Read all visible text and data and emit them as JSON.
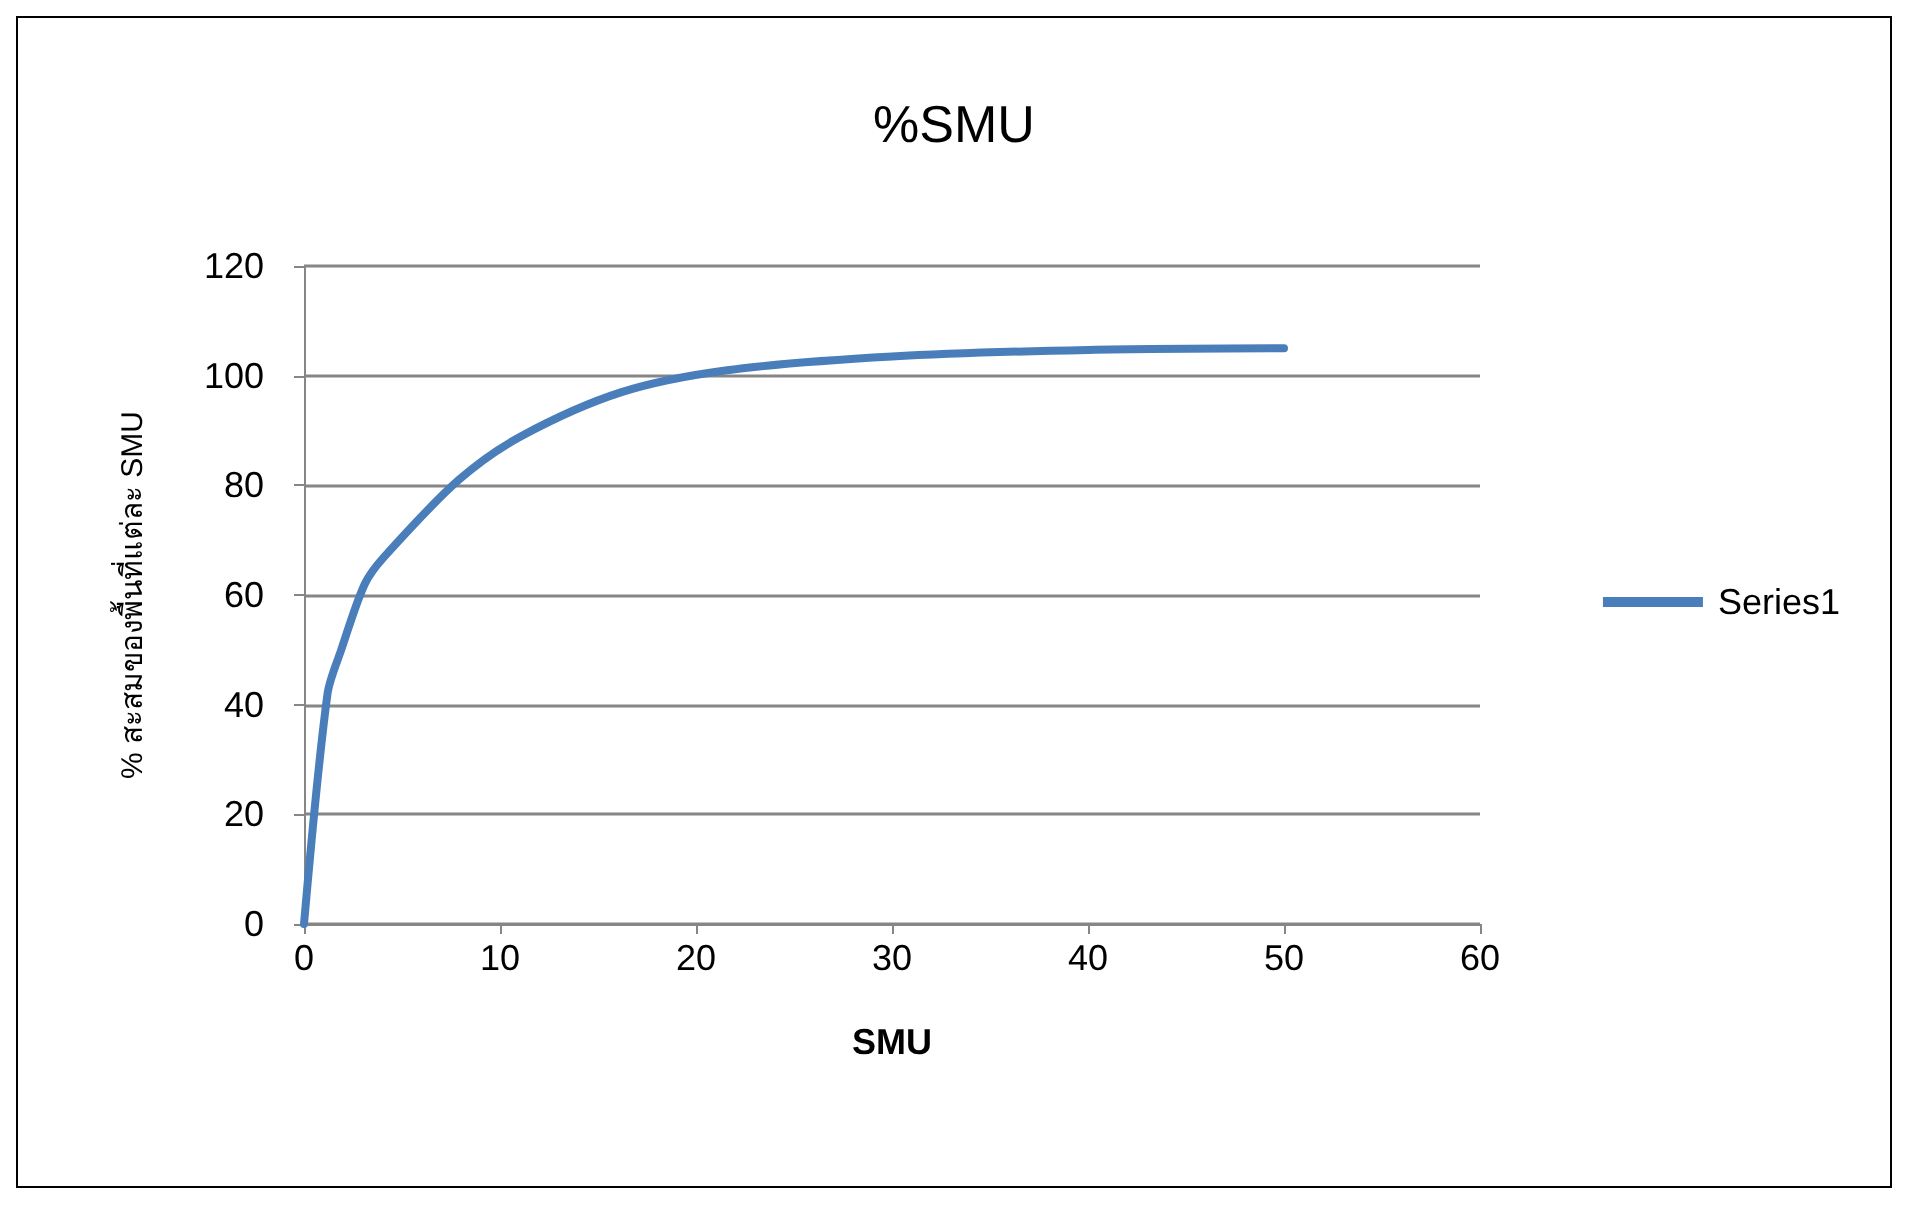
{
  "chart_data": {
    "type": "line",
    "title": "%SMU",
    "xlabel": "SMU",
    "ylabel": "% สะสมของพื้นที่แต่ละ SMU",
    "x": [
      0,
      1.2,
      1.9,
      3.1,
      4.1,
      7.9,
      11.1,
      16.2,
      21.6,
      30,
      40,
      50
    ],
    "series": [
      {
        "name": "Series1",
        "color": "#4a7ebb",
        "values": [
          0,
          42,
          50,
          62,
          67,
          81,
          89,
          97,
          101,
          103.5,
          104.7,
          105
        ]
      }
    ],
    "xlim": [
      0,
      60
    ],
    "xticks": [
      0,
      10,
      20,
      30,
      40,
      50,
      60
    ],
    "ylim": [
      0,
      120
    ],
    "yticks": [
      0,
      20,
      40,
      60,
      80,
      100,
      120
    ],
    "grid": "y",
    "legend": "right",
    "marker": "none",
    "line_style": "solid"
  }
}
